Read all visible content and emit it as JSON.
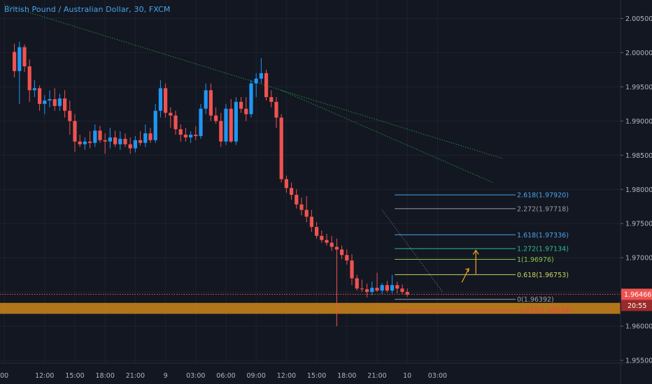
{
  "header": {
    "title": "British Pound / Australian Dollar, 30, FXCM"
  },
  "colors": {
    "background": "#131722",
    "up": "#2196f3",
    "down": "#ef5350",
    "grid": "#1e222d",
    "axis_text": "#b2b5be",
    "zone": "#d68a1a",
    "trendline": "#1f8f3a",
    "current_price_line": "#ef5350"
  },
  "chart_data": {
    "type": "candlestick",
    "x_labels": [
      "00",
      "12:00",
      "15:00",
      "18:00",
      "21:00",
      "9",
      "03:00",
      "06:00",
      "09:00",
      "12:00",
      "15:00",
      "18:00",
      "21:00",
      "10",
      "03:00"
    ],
    "x_label_index": [
      -2,
      6,
      12,
      18,
      24,
      30,
      36,
      42,
      48,
      54,
      60,
      66,
      72,
      78,
      84
    ],
    "y_ticks": [
      1.955,
      1.96,
      1.965,
      1.97,
      1.975,
      1.98,
      1.985,
      1.99,
      1.995,
      2.0,
      2.005
    ],
    "y_tick_labels": [
      "1.95500",
      "1.96000",
      "1.96500",
      "1.97000",
      "1.97500",
      "1.98000",
      "1.98500",
      "1.99000",
      "1.99500",
      "2.00000",
      "2.00500"
    ],
    "ylim": [
      1.9546,
      2.0077
    ],
    "current_price": {
      "value": 1.96466,
      "label": "1.96466",
      "countdown": "20:55"
    },
    "candles": [
      [
        2.0001,
        2.0013,
        1.9964,
        1.9973
      ],
      [
        1.9973,
        2.0016,
        1.9925,
        2.0008
      ],
      [
        2.0008,
        2.0012,
        1.9972,
        1.998
      ],
      [
        1.998,
        1.999,
        1.9928,
        1.9945
      ],
      [
        1.9945,
        1.996,
        1.9935,
        1.9948
      ],
      [
        1.9948,
        1.9952,
        1.9915,
        1.9925
      ],
      [
        1.9925,
        1.9938,
        1.991,
        1.993
      ],
      [
        1.993,
        1.9945,
        1.992,
        1.9932
      ],
      [
        1.9932,
        1.9948,
        1.9915,
        1.9922
      ],
      [
        1.9922,
        1.994,
        1.9915,
        1.9933
      ],
      [
        1.9933,
        1.9945,
        1.9905,
        1.9915
      ],
      [
        1.9915,
        1.993,
        1.988,
        1.99
      ],
      [
        1.99,
        1.991,
        1.9855,
        1.987
      ],
      [
        1.987,
        1.988,
        1.9862,
        1.9866
      ],
      [
        1.9866,
        1.9876,
        1.9858,
        1.987
      ],
      [
        1.987,
        1.9885,
        1.986,
        1.9868
      ],
      [
        1.9868,
        1.9895,
        1.9862,
        1.9886
      ],
      [
        1.9886,
        1.9893,
        1.9868,
        1.9872
      ],
      [
        1.9872,
        1.9882,
        1.9852,
        1.987
      ],
      [
        1.987,
        1.989,
        1.986,
        1.9876
      ],
      [
        1.9876,
        1.9886,
        1.9862,
        1.9866
      ],
      [
        1.9866,
        1.9885,
        1.9858,
        1.9874
      ],
      [
        1.9874,
        1.9882,
        1.9862,
        1.9866
      ],
      [
        1.9866,
        1.9876,
        1.9852,
        1.986
      ],
      [
        1.986,
        1.9878,
        1.9854,
        1.9872
      ],
      [
        1.9872,
        1.9885,
        1.9864,
        1.9868
      ],
      [
        1.9868,
        1.9895,
        1.9862,
        1.9882
      ],
      [
        1.9882,
        1.989,
        1.9868,
        1.9872
      ],
      [
        1.9872,
        1.9925,
        1.9868,
        1.9915
      ],
      [
        1.9915,
        1.996,
        1.9905,
        1.9948
      ],
      [
        1.9948,
        1.9955,
        1.9905,
        1.9912
      ],
      [
        1.9912,
        1.992,
        1.989,
        1.9908
      ],
      [
        1.9908,
        1.9915,
        1.988,
        1.9888
      ],
      [
        1.9888,
        1.9895,
        1.987,
        1.988
      ],
      [
        1.988,
        1.989,
        1.987,
        1.9876
      ],
      [
        1.9876,
        1.9885,
        1.9868,
        1.988
      ],
      [
        1.988,
        1.9892,
        1.9872,
        1.9878
      ],
      [
        1.9878,
        1.9925,
        1.9874,
        1.9918
      ],
      [
        1.9918,
        1.9955,
        1.991,
        1.9945
      ],
      [
        1.9945,
        1.9955,
        1.99,
        1.9908
      ],
      [
        1.9908,
        1.992,
        1.9896,
        1.99
      ],
      [
        1.99,
        1.9912,
        1.9862,
        1.987
      ],
      [
        1.987,
        1.9925,
        1.9865,
        1.9918
      ],
      [
        1.9918,
        1.9932,
        1.9868,
        1.987
      ],
      [
        1.987,
        1.9935,
        1.9865,
        1.9928
      ],
      [
        1.9928,
        1.9935,
        1.9912,
        1.9918
      ],
      [
        1.9918,
        1.9935,
        1.99,
        1.991
      ],
      [
        1.991,
        1.996,
        1.9905,
        1.9955
      ],
      [
        1.9955,
        1.997,
        1.9935,
        1.9962
      ],
      [
        1.9962,
        1.9992,
        1.9955,
        1.997
      ],
      [
        1.997,
        1.9975,
        1.993,
        1.9935
      ],
      [
        1.9935,
        1.9945,
        1.992,
        1.9928
      ],
      [
        1.9928,
        1.9935,
        1.989,
        1.9905
      ],
      [
        1.9905,
        1.991,
        1.981,
        1.9815
      ],
      [
        1.9815,
        1.982,
        1.9795,
        1.9802
      ],
      [
        1.9802,
        1.981,
        1.9785,
        1.9792
      ],
      [
        1.9792,
        1.98,
        1.9772,
        1.9778
      ],
      [
        1.9778,
        1.9788,
        1.9762,
        1.977
      ],
      [
        1.977,
        1.979,
        1.9752,
        1.976
      ],
      [
        1.976,
        1.977,
        1.9738,
        1.9745
      ],
      [
        1.9745,
        1.9752,
        1.9728,
        1.9732
      ],
      [
        1.9732,
        1.974,
        1.9722,
        1.9726
      ],
      [
        1.9726,
        1.9735,
        1.9718,
        1.9722
      ],
      [
        1.9722,
        1.9732,
        1.971,
        1.9716
      ],
      [
        1.9716,
        1.9728,
        1.96,
        1.9712
      ],
      [
        1.9712,
        1.9718,
        1.9698,
        1.9704
      ],
      [
        1.9704,
        1.9712,
        1.969,
        1.9696
      ],
      [
        1.9696,
        1.9705,
        1.966,
        1.967
      ],
      [
        1.967,
        1.9675,
        1.9652,
        1.9655
      ],
      [
        1.9655,
        1.9668,
        1.965,
        1.9654
      ],
      [
        1.9654,
        1.9662,
        1.9642,
        1.965
      ],
      [
        1.965,
        1.9665,
        1.9645,
        1.9656
      ],
      [
        1.9656,
        1.9678,
        1.965,
        1.9652
      ],
      [
        1.9652,
        1.9663,
        1.9647,
        1.966
      ],
      [
        1.966,
        1.9666,
        1.9649,
        1.9652
      ],
      [
        1.9652,
        1.9675,
        1.9648,
        1.966
      ],
      [
        1.966,
        1.9665,
        1.9648,
        1.9655
      ],
      [
        1.9655,
        1.9661,
        1.9647,
        1.965
      ],
      [
        1.965,
        1.9655,
        1.9643,
        1.9646
      ]
    ],
    "annotations": {
      "zone": {
        "top": 1.9634,
        "bottom": 1.9618,
        "x_start_index": -3
      },
      "trendlines": [
        {
          "from": [
            -2,
            2.007
          ],
          "to": [
            97,
            1.9845
          ],
          "style": "dotted"
        },
        {
          "from": [
            53,
            1.9945
          ],
          "to": [
            95,
            1.981
          ],
          "style": "dotted"
        },
        {
          "from": [
            73,
            1.977
          ],
          "to": [
            85,
            1.965
          ],
          "style": "dotted"
        }
      ],
      "fib": {
        "x_start_index": 75.5,
        "x_end_index": 99.5,
        "levels": [
          {
            "label": "2.618(1.97920)",
            "value": 1.9792,
            "color": "#4aa3e8"
          },
          {
            "label": "2.272(1.97718)",
            "value": 1.97718,
            "color": "#9a9ea8"
          },
          {
            "label": "1.618(1.97336)",
            "value": 1.97336,
            "color": "#4aa3e8"
          },
          {
            "label": "1.272(1.97134)",
            "value": 1.97134,
            "color": "#2fbf8f"
          },
          {
            "label": "1(1.96976)",
            "value": 1.96976,
            "color": "#8bc34a"
          },
          {
            "label": "0.618(1.96753)",
            "value": 1.96753,
            "color": "#c6d65a"
          },
          {
            "label": "0(1.96392)",
            "value": 1.96392,
            "color": "#9a9ea8"
          },
          {
            "label": "-0.272(1.96234)",
            "value": 1.96234,
            "color": "#ef3d55"
          }
        ]
      }
    }
  }
}
